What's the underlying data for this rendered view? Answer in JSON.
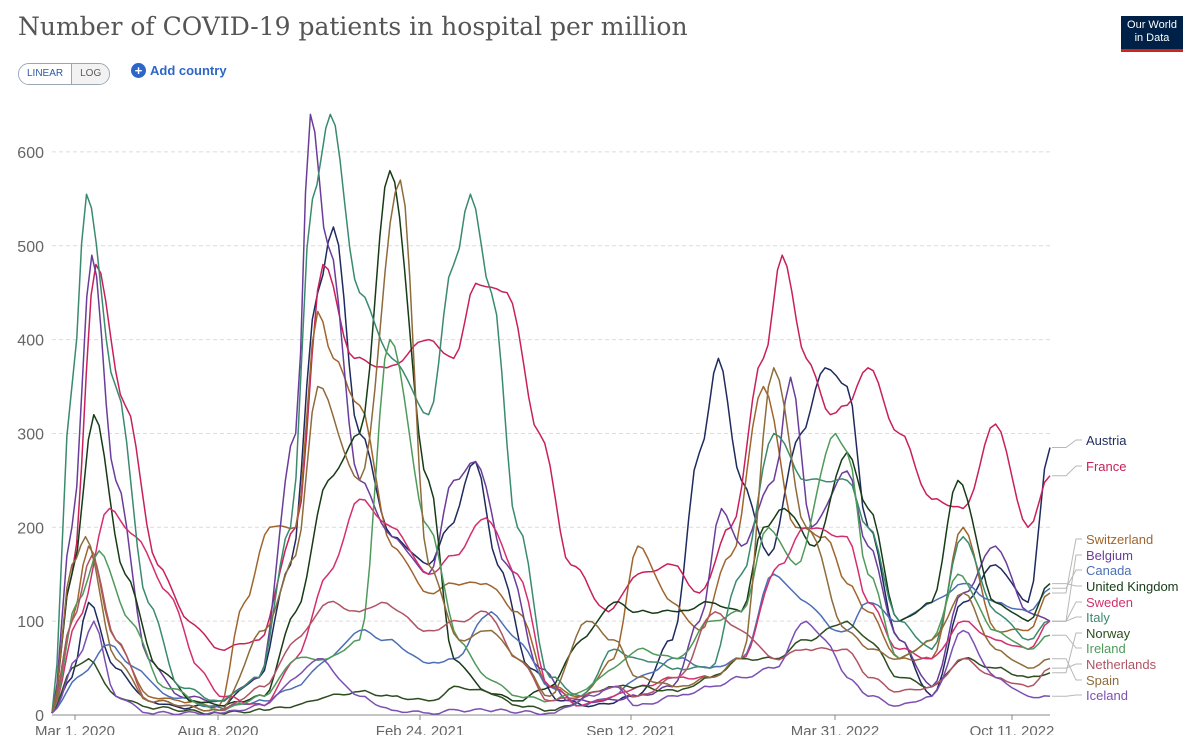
{
  "header": {
    "title": "Number of COVID-19 patients in hospital per million",
    "logo_line1": "Our World",
    "logo_line2": "in Data"
  },
  "controls": {
    "linear_label": "LINEAR",
    "log_label": "LOG",
    "add_country_label": "Add country",
    "selected_scale": "LINEAR"
  },
  "chart_data": {
    "type": "line",
    "title": "Number of COVID-19 patients in hospital per million",
    "x_range": [
      "2020-03-01",
      "2022-10-11"
    ],
    "ylim": [
      0,
      650
    ],
    "y_ticks": [
      0,
      100,
      200,
      300,
      400,
      500,
      600
    ],
    "x_ticks": [
      "Mar 1, 2020",
      "Aug 8, 2020",
      "Feb 24, 2021",
      "Sep 12, 2021",
      "Mar 31, 2022",
      "Oct 11, 2022"
    ],
    "grid": true,
    "legend_position": "right",
    "series": [
      {
        "name": "Austria",
        "color": "#1f2a5e",
        "x": [
          "2020-03-01",
          "2020-03-20",
          "2020-04-05",
          "2020-05-01",
          "2020-06-01",
          "2020-07-01",
          "2020-08-08",
          "2020-09-15",
          "2020-10-15",
          "2020-11-10",
          "2020-11-25",
          "2020-12-20",
          "2021-01-20",
          "2021-02-24",
          "2021-03-15",
          "2021-04-10",
          "2021-05-01",
          "2021-06-01",
          "2021-07-01",
          "2021-08-01",
          "2021-09-12",
          "2021-10-15",
          "2021-11-10",
          "2021-11-28",
          "2021-12-20",
          "2022-01-15",
          "2022-02-15",
          "2022-03-10",
          "2022-03-31",
          "2022-04-20",
          "2022-05-20",
          "2022-06-20",
          "2022-07-20",
          "2022-08-20",
          "2022-09-20",
          "2022-10-11"
        ],
        "y": [
          2,
          40,
          120,
          50,
          15,
          8,
          10,
          40,
          160,
          450,
          520,
          300,
          190,
          160,
          200,
          270,
          160,
          50,
          15,
          10,
          20,
          80,
          280,
          380,
          250,
          170,
          300,
          370,
          350,
          200,
          80,
          20,
          120,
          160,
          120,
          285
        ]
      },
      {
        "name": "France",
        "color": "#c8205a",
        "x": [
          "2020-03-01",
          "2020-03-20",
          "2020-04-12",
          "2020-05-10",
          "2020-06-10",
          "2020-07-10",
          "2020-08-08",
          "2020-09-15",
          "2020-10-20",
          "2020-11-15",
          "2020-12-15",
          "2021-01-15",
          "2021-02-24",
          "2021-03-20",
          "2021-04-10",
          "2021-05-10",
          "2021-06-10",
          "2021-07-10",
          "2021-08-15",
          "2021-09-12",
          "2021-10-15",
          "2021-11-10",
          "2021-12-10",
          "2022-01-10",
          "2022-01-28",
          "2022-02-20",
          "2022-03-15",
          "2022-03-31",
          "2022-04-20",
          "2022-05-20",
          "2022-06-20",
          "2022-07-20",
          "2022-08-20",
          "2022-09-20",
          "2022-10-11"
        ],
        "y": [
          2,
          150,
          480,
          330,
          160,
          100,
          70,
          80,
          200,
          480,
          380,
          370,
          400,
          380,
          460,
          450,
          300,
          160,
          110,
          150,
          160,
          130,
          200,
          380,
          490,
          380,
          320,
          330,
          370,
          300,
          230,
          220,
          310,
          200,
          255
        ]
      },
      {
        "name": "Switzerland",
        "color": "#a0652e",
        "x": [
          "2020-03-01",
          "2020-03-20",
          "2020-04-05",
          "2020-05-01",
          "2020-06-01",
          "2020-07-01",
          "2020-08-08",
          "2020-09-01",
          "2020-09-25",
          "2020-10-20",
          "2020-11-10",
          "2020-11-25",
          "2020-12-20",
          "2021-01-20",
          "2021-02-24",
          "2021-03-20",
          "2021-04-20",
          "2021-05-20",
          "2021-06-20",
          "2021-07-20",
          "2021-08-20",
          "2021-09-12",
          "2021-10-15",
          "2021-11-10",
          "2021-12-10",
          "2022-01-10",
          "2022-02-10",
          "2022-03-10",
          "2022-03-31",
          "2022-04-20",
          "2022-05-20",
          "2022-06-20",
          "2022-07-20",
          "2022-08-20",
          "2022-09-20",
          "2022-10-11"
        ],
        "y": [
          2,
          100,
          180,
          80,
          20,
          15,
          10,
          120,
          200,
          200,
          430,
          380,
          330,
          180,
          130,
          140,
          140,
          110,
          30,
          20,
          60,
          180,
          120,
          90,
          170,
          350,
          200,
          190,
          140,
          110,
          60,
          60,
          200,
          90,
          90,
          130
        ]
      },
      {
        "name": "Belgium",
        "color": "#6a3d9a",
        "x": [
          "2020-03-01",
          "2020-03-20",
          "2020-04-08",
          "2020-05-01",
          "2020-06-01",
          "2020-07-01",
          "2020-08-08",
          "2020-09-15",
          "2020-10-20",
          "2020-11-03",
          "2020-11-20",
          "2020-12-20",
          "2021-01-20",
          "2021-02-24",
          "2021-03-20",
          "2021-04-10",
          "2021-05-10",
          "2021-06-10",
          "2021-07-10",
          "2021-08-10",
          "2021-09-12",
          "2021-10-15",
          "2021-11-10",
          "2021-12-01",
          "2021-12-20",
          "2022-01-20",
          "2022-02-05",
          "2022-02-25",
          "2022-03-31",
          "2022-04-20",
          "2022-05-20",
          "2022-06-20",
          "2022-07-20",
          "2022-08-20",
          "2022-09-20",
          "2022-10-11"
        ],
        "y": [
          2,
          200,
          490,
          250,
          60,
          20,
          15,
          40,
          300,
          640,
          500,
          250,
          190,
          150,
          250,
          270,
          160,
          50,
          15,
          15,
          20,
          30,
          100,
          220,
          180,
          250,
          360,
          200,
          260,
          180,
          80,
          30,
          130,
          180,
          110,
          100
        ]
      },
      {
        "name": "Canada",
        "color": "#4c6fb5",
        "x": [
          "2020-03-01",
          "2020-03-25",
          "2020-04-25",
          "2020-05-20",
          "2020-06-20",
          "2020-08-08",
          "2020-09-20",
          "2020-10-20",
          "2020-11-20",
          "2020-12-20",
          "2021-01-15",
          "2021-02-24",
          "2021-03-20",
          "2021-04-25",
          "2021-05-20",
          "2021-06-20",
          "2021-07-20",
          "2021-08-20",
          "2021-09-12",
          "2021-10-20",
          "2021-11-20",
          "2021-12-20",
          "2022-01-20",
          "2022-02-20",
          "2022-03-20",
          "2022-03-31",
          "2022-04-20",
          "2022-05-20",
          "2022-06-20",
          "2022-07-20",
          "2022-08-20",
          "2022-09-20",
          "2022-10-11"
        ],
        "y": [
          2,
          40,
          75,
          50,
          20,
          8,
          15,
          30,
          60,
          90,
          80,
          55,
          60,
          110,
          80,
          30,
          10,
          20,
          40,
          60,
          50,
          60,
          150,
          120,
          90,
          90,
          120,
          100,
          120,
          140,
          120,
          110,
          135
        ]
      },
      {
        "name": "United Kingdom",
        "color": "#163b16",
        "x": [
          "2020-03-01",
          "2020-03-20",
          "2020-04-10",
          "2020-05-10",
          "2020-06-10",
          "2020-07-15",
          "2020-08-08",
          "2020-09-20",
          "2020-10-20",
          "2020-11-20",
          "2020-12-20",
          "2021-01-18",
          "2021-02-24",
          "2021-03-20",
          "2021-04-20",
          "2021-05-20",
          "2021-06-20",
          "2021-07-20",
          "2021-08-20",
          "2021-09-12",
          "2021-10-20",
          "2021-11-20",
          "2021-12-20",
          "2022-01-10",
          "2022-01-30",
          "2022-02-28",
          "2022-03-31",
          "2022-04-20",
          "2022-05-20",
          "2022-06-20",
          "2022-07-15",
          "2022-08-20",
          "2022-09-20",
          "2022-10-11"
        ],
        "y": [
          2,
          150,
          320,
          150,
          50,
          15,
          10,
          20,
          110,
          250,
          300,
          580,
          250,
          60,
          25,
          15,
          30,
          80,
          120,
          110,
          110,
          120,
          110,
          200,
          220,
          180,
          280,
          220,
          100,
          120,
          250,
          120,
          100,
          140
        ]
      },
      {
        "name": "Sweden",
        "color": "#d32f6f",
        "x": [
          "2020-03-01",
          "2020-03-25",
          "2020-04-25",
          "2020-05-20",
          "2020-06-20",
          "2020-07-20",
          "2020-08-08",
          "2020-09-20",
          "2020-10-20",
          "2020-11-20",
          "2020-12-20",
          "2021-01-20",
          "2021-02-24",
          "2021-03-20",
          "2021-04-20",
          "2021-05-20",
          "2021-06-20",
          "2021-07-20",
          "2021-08-20",
          "2021-09-12",
          "2021-10-20",
          "2021-11-20",
          "2021-12-20",
          "2022-01-25",
          "2022-02-20",
          "2022-03-31",
          "2022-04-20",
          "2022-05-20",
          "2022-06-20",
          "2022-07-20",
          "2022-08-20",
          "2022-09-20",
          "2022-10-11"
        ],
        "y": [
          2,
          100,
          220,
          190,
          130,
          50,
          20,
          10,
          60,
          150,
          230,
          200,
          150,
          170,
          210,
          150,
          30,
          10,
          20,
          30,
          40,
          40,
          60,
          160,
          200,
          190,
          120,
          70,
          60,
          100,
          80,
          70,
          100
        ]
      },
      {
        "name": "Italy",
        "color": "#3a8a6e",
        "x": [
          "2020-03-01",
          "2020-03-20",
          "2020-04-03",
          "2020-05-01",
          "2020-06-01",
          "2020-07-01",
          "2020-08-08",
          "2020-09-15",
          "2020-10-15",
          "2020-11-05",
          "2020-11-22",
          "2020-12-20",
          "2021-01-20",
          "2021-02-24",
          "2021-03-20",
          "2021-04-05",
          "2021-04-25",
          "2021-05-20",
          "2021-06-20",
          "2021-07-20",
          "2021-08-20",
          "2021-09-12",
          "2021-10-20",
          "2021-11-20",
          "2021-12-20",
          "2022-01-20",
          "2022-02-20",
          "2022-03-31",
          "2022-04-20",
          "2022-05-20",
          "2022-06-20",
          "2022-07-20",
          "2022-08-20",
          "2022-09-20",
          "2022-10-11"
        ],
        "y": [
          2,
          350,
          555,
          350,
          120,
          30,
          15,
          40,
          200,
          550,
          640,
          450,
          380,
          320,
          480,
          555,
          450,
          200,
          40,
          20,
          70,
          60,
          50,
          50,
          150,
          300,
          250,
          250,
          200,
          100,
          70,
          190,
          110,
          80,
          100
        ]
      },
      {
        "name": "Norway",
        "color": "#2e4d1f",
        "x": [
          "2020-03-01",
          "2020-03-20",
          "2020-04-05",
          "2020-05-01",
          "2020-06-01",
          "2020-08-08",
          "2020-09-20",
          "2020-10-20",
          "2020-11-20",
          "2020-12-20",
          "2021-01-20",
          "2021-02-24",
          "2021-03-25",
          "2021-04-20",
          "2021-05-20",
          "2021-06-20",
          "2021-08-20",
          "2021-09-12",
          "2021-10-20",
          "2021-11-20",
          "2021-12-20",
          "2022-01-20",
          "2022-02-20",
          "2022-03-31",
          "2022-04-20",
          "2022-05-20",
          "2022-06-20",
          "2022-07-20",
          "2022-08-20",
          "2022-09-20",
          "2022-10-11"
        ],
        "y": [
          2,
          50,
          60,
          20,
          8,
          2,
          5,
          10,
          20,
          25,
          20,
          15,
          30,
          25,
          10,
          5,
          30,
          30,
          25,
          40,
          60,
          60,
          80,
          100,
          80,
          40,
          30,
          60,
          50,
          40,
          45
        ]
      },
      {
        "name": "Ireland",
        "color": "#4f9a5a",
        "x": [
          "2020-03-01",
          "2020-03-25",
          "2020-04-15",
          "2020-05-15",
          "2020-06-15",
          "2020-08-08",
          "2020-09-20",
          "2020-10-20",
          "2020-11-20",
          "2020-12-20",
          "2021-01-18",
          "2021-02-24",
          "2021-03-25",
          "2021-04-20",
          "2021-05-20",
          "2021-06-20",
          "2021-07-20",
          "2021-08-20",
          "2021-09-12",
          "2021-10-20",
          "2021-11-20",
          "2021-12-20",
          "2022-01-15",
          "2022-02-10",
          "2022-03-20",
          "2022-03-31",
          "2022-04-20",
          "2022-05-20",
          "2022-06-20",
          "2022-07-15",
          "2022-08-20",
          "2022-09-20",
          "2022-10-11"
        ],
        "y": [
          2,
          120,
          175,
          100,
          30,
          5,
          20,
          60,
          60,
          80,
          400,
          200,
          80,
          40,
          20,
          15,
          25,
          50,
          70,
          60,
          100,
          110,
          200,
          160,
          300,
          280,
          150,
          60,
          80,
          150,
          90,
          70,
          85
        ]
      },
      {
        "name": "Netherlands",
        "color": "#b05464",
        "x": [
          "2020-03-01",
          "2020-03-20",
          "2020-04-08",
          "2020-05-01",
          "2020-06-01",
          "2020-08-08",
          "2020-09-20",
          "2020-10-20",
          "2020-11-20",
          "2020-12-20",
          "2021-01-10",
          "2021-02-24",
          "2021-03-25",
          "2021-04-20",
          "2021-05-20",
          "2021-06-20",
          "2021-07-20",
          "2021-08-20",
          "2021-09-12",
          "2021-10-20",
          "2021-11-25",
          "2021-12-20",
          "2022-01-20",
          "2022-02-20",
          "2022-03-31",
          "2022-04-20",
          "2022-05-20",
          "2022-06-20",
          "2022-07-20",
          "2022-08-20",
          "2022-09-20",
          "2022-10-11"
        ],
        "y": [
          2,
          100,
          170,
          80,
          15,
          5,
          30,
          80,
          120,
          110,
          120,
          90,
          100,
          110,
          60,
          15,
          20,
          30,
          20,
          40,
          110,
          90,
          60,
          70,
          70,
          40,
          25,
          30,
          60,
          40,
          30,
          50
        ]
      },
      {
        "name": "Spain",
        "color": "#8e6b3a",
        "x": [
          "2020-03-01",
          "2020-03-20",
          "2020-04-02",
          "2020-05-01",
          "2020-06-01",
          "2020-08-08",
          "2020-09-20",
          "2020-10-20",
          "2020-11-10",
          "2020-12-20",
          "2021-01-28",
          "2021-02-24",
          "2021-03-25",
          "2021-04-25",
          "2021-05-20",
          "2021-06-20",
          "2021-07-25",
          "2021-08-20",
          "2021-09-12",
          "2021-10-20",
          "2021-11-20",
          "2021-12-20",
          "2022-01-20",
          "2022-02-20",
          "2022-03-31",
          "2022-04-20",
          "2022-05-20",
          "2022-06-20",
          "2022-07-20",
          "2022-08-20",
          "2022-09-20",
          "2022-10-11"
        ],
        "y": [
          2,
          160,
          190,
          60,
          15,
          5,
          90,
          170,
          350,
          250,
          570,
          160,
          80,
          90,
          60,
          20,
          100,
          80,
          40,
          30,
          40,
          60,
          370,
          200,
          90,
          70,
          60,
          80,
          130,
          70,
          50,
          60
        ]
      },
      {
        "name": "Iceland",
        "color": "#7b4fb3",
        "x": [
          "2020-03-01",
          "2020-03-25",
          "2020-04-10",
          "2020-05-01",
          "2020-06-01",
          "2020-08-08",
          "2020-09-20",
          "2020-10-20",
          "2020-11-10",
          "2020-12-20",
          "2021-01-20",
          "2021-02-24",
          "2021-03-25",
          "2021-04-20",
          "2021-06-20",
          "2021-08-01",
          "2021-08-20",
          "2021-09-12",
          "2021-10-20",
          "2021-11-20",
          "2021-12-20",
          "2022-01-20",
          "2022-02-20",
          "2022-03-10",
          "2022-03-31",
          "2022-04-20",
          "2022-05-20",
          "2022-06-20",
          "2022-07-20",
          "2022-08-20",
          "2022-09-20",
          "2022-10-11"
        ],
        "y": [
          2,
          60,
          100,
          20,
          2,
          2,
          10,
          40,
          60,
          20,
          5,
          2,
          5,
          5,
          2,
          20,
          30,
          10,
          20,
          30,
          40,
          50,
          100,
          80,
          40,
          20,
          10,
          20,
          90,
          40,
          20,
          20
        ]
      }
    ]
  }
}
